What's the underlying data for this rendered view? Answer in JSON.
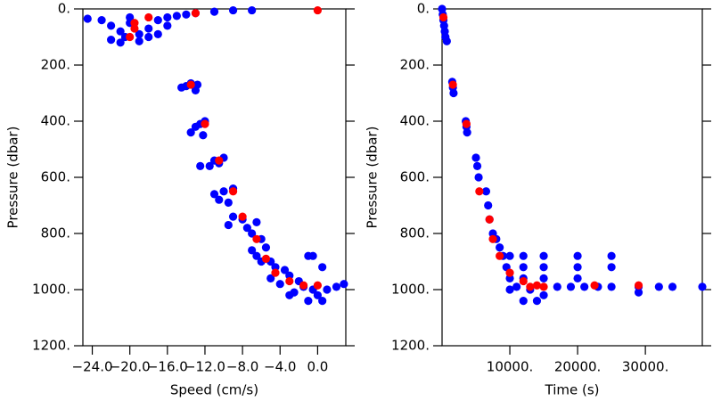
{
  "chart_data": [
    {
      "type": "scatter",
      "xlabel": "Speed (cm/s)",
      "ylabel": "Pressure (dbar)",
      "xlim": [
        -25,
        3
      ],
      "ylim": [
        1200,
        0
      ],
      "xticks": [
        {
          "value": -24,
          "label": "−24.0"
        },
        {
          "value": -20,
          "label": "−20.0"
        },
        {
          "value": -16,
          "label": "−16.0"
        },
        {
          "value": -12,
          "label": "−12.0"
        },
        {
          "value": -8,
          "label": "−8.0"
        },
        {
          "value": -4,
          "label": "−4.0"
        },
        {
          "value": 0,
          "label": "0.0"
        }
      ],
      "yticks": [
        {
          "value": 0,
          "label": "0."
        },
        {
          "value": 200,
          "label": "200."
        },
        {
          "value": 400,
          "label": "400."
        },
        {
          "value": 600,
          "label": "600."
        },
        {
          "value": 800,
          "label": "800."
        },
        {
          "value": 1000,
          "label": "1000."
        },
        {
          "value": 1200,
          "label": "1200."
        }
      ],
      "series": [
        {
          "color": "#0000ff",
          "x": [
            -24.5,
            -23,
            -22,
            -21,
            -20.5,
            -22,
            -20,
            -19,
            -18,
            -17,
            -16,
            -15,
            -14,
            -13,
            -11,
            -9,
            -7,
            -19,
            -21,
            -18,
            -20,
            -16,
            -17,
            -14.5,
            -14,
            -13.5,
            -12.8,
            -13,
            -13,
            -12.5,
            -12,
            -13.5,
            -12.2,
            -11,
            -10.5,
            -11.5,
            -10,
            -12.5,
            -10,
            -9,
            -10.5,
            -9.5,
            -11,
            -9,
            -8,
            -7.5,
            -9.5,
            -6.5,
            -7,
            -6,
            -5.5,
            -7,
            -6.5,
            -5,
            -4.5,
            -6,
            -3.5,
            -3,
            -2,
            -1.5,
            -0.5,
            0,
            1,
            2,
            -4,
            -2.5,
            0.5,
            -1,
            -0.5,
            -1,
            0.5,
            -3,
            -5,
            2.8
          ],
          "values": [
            35,
            40,
            60,
            80,
            100,
            110,
            50,
            90,
            70,
            40,
            30,
            25,
            20,
            15,
            10,
            5,
            5,
            115,
            120,
            100,
            30,
            60,
            90,
            280,
            275,
            265,
            270,
            290,
            420,
            410,
            400,
            440,
            450,
            540,
            550,
            560,
            530,
            560,
            650,
            640,
            680,
            690,
            660,
            740,
            750,
            780,
            770,
            760,
            800,
            820,
            850,
            860,
            880,
            900,
            920,
            900,
            930,
            950,
            970,
            990,
            1000,
            1020,
            1000,
            990,
            980,
            1010,
            1040,
            1040,
            880,
            880,
            920,
            1020,
            960,
            980
          ]
        },
        {
          "color": "#ff0000",
          "x": [
            -20,
            -19.5,
            -19.5,
            -18,
            -13,
            0,
            -13.5,
            -12,
            -10.5,
            -9,
            -8,
            -6.5,
            -5.5,
            -4.5,
            -3,
            -1.5,
            0
          ],
          "values": [
            100,
            70,
            50,
            30,
            15,
            5,
            270,
            410,
            540,
            650,
            740,
            820,
            890,
            940,
            970,
            985,
            985
          ]
        }
      ]
    },
    {
      "type": "scatter",
      "xlabel": "Time (s)",
      "ylabel": "Pressure (dbar)",
      "xlim": [
        0,
        38400
      ],
      "ylim": [
        1200,
        0
      ],
      "xticks": [
        {
          "value": 10000,
          "label": "10000."
        },
        {
          "value": 20000,
          "label": "20000."
        },
        {
          "value": 30000,
          "label": "30000."
        }
      ],
      "yticks": [
        {
          "value": 0,
          "label": "0."
        },
        {
          "value": 200,
          "label": "200."
        },
        {
          "value": 400,
          "label": "400."
        },
        {
          "value": 600,
          "label": "600."
        },
        {
          "value": 800,
          "label": "800."
        },
        {
          "value": 1000,
          "label": "1000."
        },
        {
          "value": 1200,
          "label": "1200."
        }
      ],
      "series": [
        {
          "color": "#0000ff",
          "x": [
            0,
            100,
            200,
            300,
            400,
            500,
            700,
            1500,
            1600,
            1700,
            3500,
            3600,
            3700,
            5000,
            5200,
            5400,
            6500,
            6800,
            7000,
            7500,
            8000,
            8500,
            9000,
            10000,
            12000,
            15000,
            20000,
            25000,
            9500,
            12000,
            15000,
            20000,
            25000,
            10000,
            12000,
            15000,
            20000,
            11000,
            13000,
            15000,
            12000,
            14000,
            17000,
            19000,
            21000,
            23000,
            25000,
            29000,
            29000,
            32000,
            34000,
            38400,
            10000
          ],
          "values": [
            0,
            20,
            40,
            60,
            80,
            100,
            115,
            260,
            280,
            300,
            400,
            420,
            440,
            530,
            560,
            600,
            650,
            700,
            750,
            800,
            820,
            850,
            880,
            880,
            880,
            880,
            880,
            880,
            920,
            920,
            920,
            920,
            920,
            960,
            960,
            960,
            960,
            990,
            1000,
            1020,
            1040,
            1040,
            990,
            990,
            990,
            990,
            990,
            990,
            1010,
            990,
            990,
            990,
            1000
          ]
        },
        {
          "color": "#ff0000",
          "x": [
            200,
            1600,
            3600,
            5500,
            7000,
            7500,
            8500,
            10000,
            12000,
            13000,
            14000,
            15000,
            22500,
            29000
          ],
          "values": [
            30,
            270,
            410,
            650,
            750,
            820,
            880,
            940,
            970,
            990,
            985,
            990,
            985,
            985
          ]
        }
      ]
    }
  ]
}
